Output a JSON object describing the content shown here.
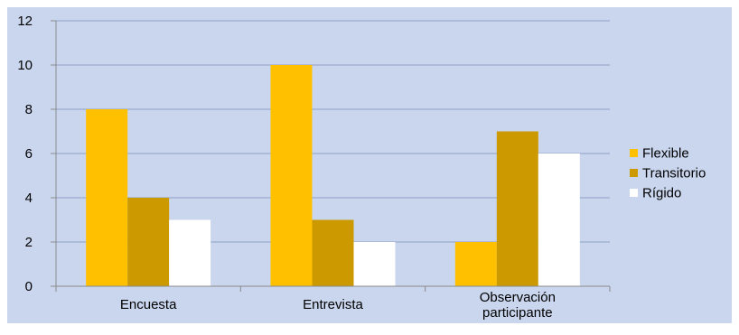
{
  "chart_data": {
    "type": "bar",
    "categories": [
      "Encuesta",
      "Entrevista",
      "Observación participante"
    ],
    "category_lines": [
      [
        "Encuesta"
      ],
      [
        "Entrevista"
      ],
      [
        "Observación",
        "participante"
      ]
    ],
    "series": [
      {
        "name": "Flexible",
        "values": [
          8,
          10,
          2
        ],
        "color": "#FFC000"
      },
      {
        "name": "Transitorio",
        "values": [
          4,
          3,
          7
        ],
        "color": "#CC9900"
      },
      {
        "name": "Rígido",
        "values": [
          3,
          2,
          6
        ],
        "color": "#FFFFFF"
      }
    ],
    "ylim": [
      0,
      12
    ],
    "yticks": [
      0,
      2,
      4,
      6,
      8,
      10,
      12
    ],
    "grid": true,
    "legend": "right",
    "background_color": "#C9D6EE",
    "gridline_color": "#8DA0C4",
    "title": "",
    "xlabel": "",
    "ylabel": ""
  }
}
